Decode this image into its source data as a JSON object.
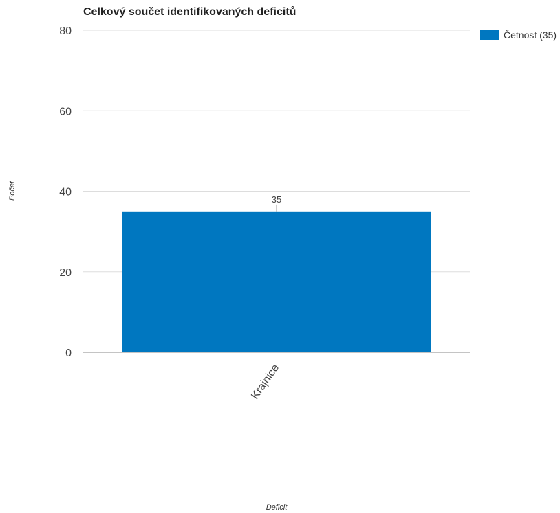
{
  "chart_data": {
    "type": "bar",
    "title": "Celkový součet identifikovaných deficitů",
    "xlabel": "Deficit",
    "ylabel": "Počet",
    "categories": [
      "Krajnice"
    ],
    "series": [
      {
        "name": "Četnost (35)",
        "values": [
          35
        ],
        "color": "#0077c0"
      }
    ],
    "data_labels": [
      "35"
    ],
    "ylim": [
      0,
      80
    ],
    "yticks": [
      0,
      20,
      40,
      60,
      80
    ],
    "grid": true,
    "legend_position": "top-right"
  }
}
